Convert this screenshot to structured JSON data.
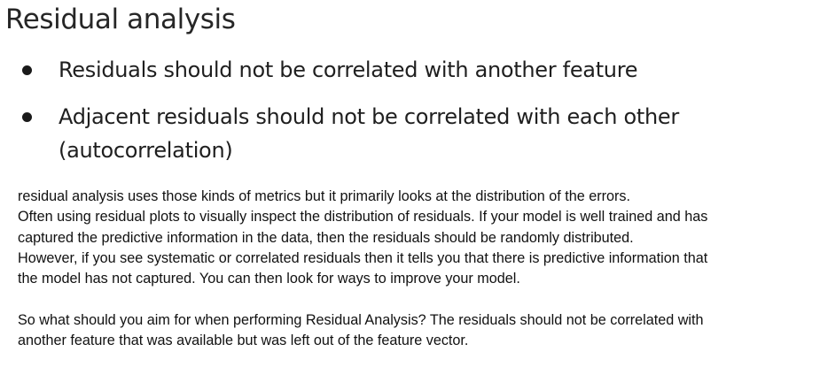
{
  "slide": {
    "title": "Residual analysis",
    "bullets": [
      "Residuals should not be correlated with another feature",
      "Adjacent residuals should not be correlated with each other (autocorrelation)"
    ]
  },
  "notes": {
    "lines": [
      "residual analysis uses those kinds of metrics but it primarily looks at the distribution of the errors.",
      "Often using residual plots to visually inspect the distribution of residuals. If your model is well trained and has",
      "captured the predictive information in the data, then the residuals should be randomly distributed.",
      "However, if you see systematic or correlated residuals then it tells you that there is predictive information that",
      "the model has not captured. You can then look for ways to improve your model.",
      "So what should you aim for when performing Residual Analysis? The residuals should not be correlated with",
      "another feature that was available but was left out of the feature vector."
    ]
  }
}
